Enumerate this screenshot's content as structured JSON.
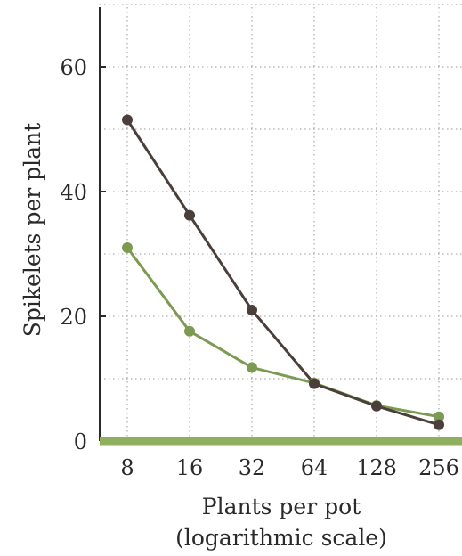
{
  "chart_data": {
    "type": "line",
    "title": "",
    "xlabel": "Plants per pot",
    "xlabel_note": "(logarithmic scale)",
    "ylabel": "Spikelets per plant",
    "x_scale": "log2",
    "x": [
      8,
      16,
      32,
      64,
      128,
      256
    ],
    "x_tick_labels": [
      "8",
      "16",
      "32",
      "64",
      "128",
      "256"
    ],
    "y_ticks": [
      0,
      20,
      40,
      60
    ],
    "ylim": [
      0,
      70
    ],
    "grid": true,
    "legend": "none",
    "series": [
      {
        "color": "#4a3f3a",
        "values": [
          51.5,
          36.2,
          21.0,
          9.2,
          5.6,
          2.6
        ]
      },
      {
        "color": "#7c9a52",
        "values": [
          31.0,
          17.6,
          11.8,
          9.3,
          5.7,
          3.9
        ]
      }
    ],
    "baseline_color": "#8fae5e"
  }
}
